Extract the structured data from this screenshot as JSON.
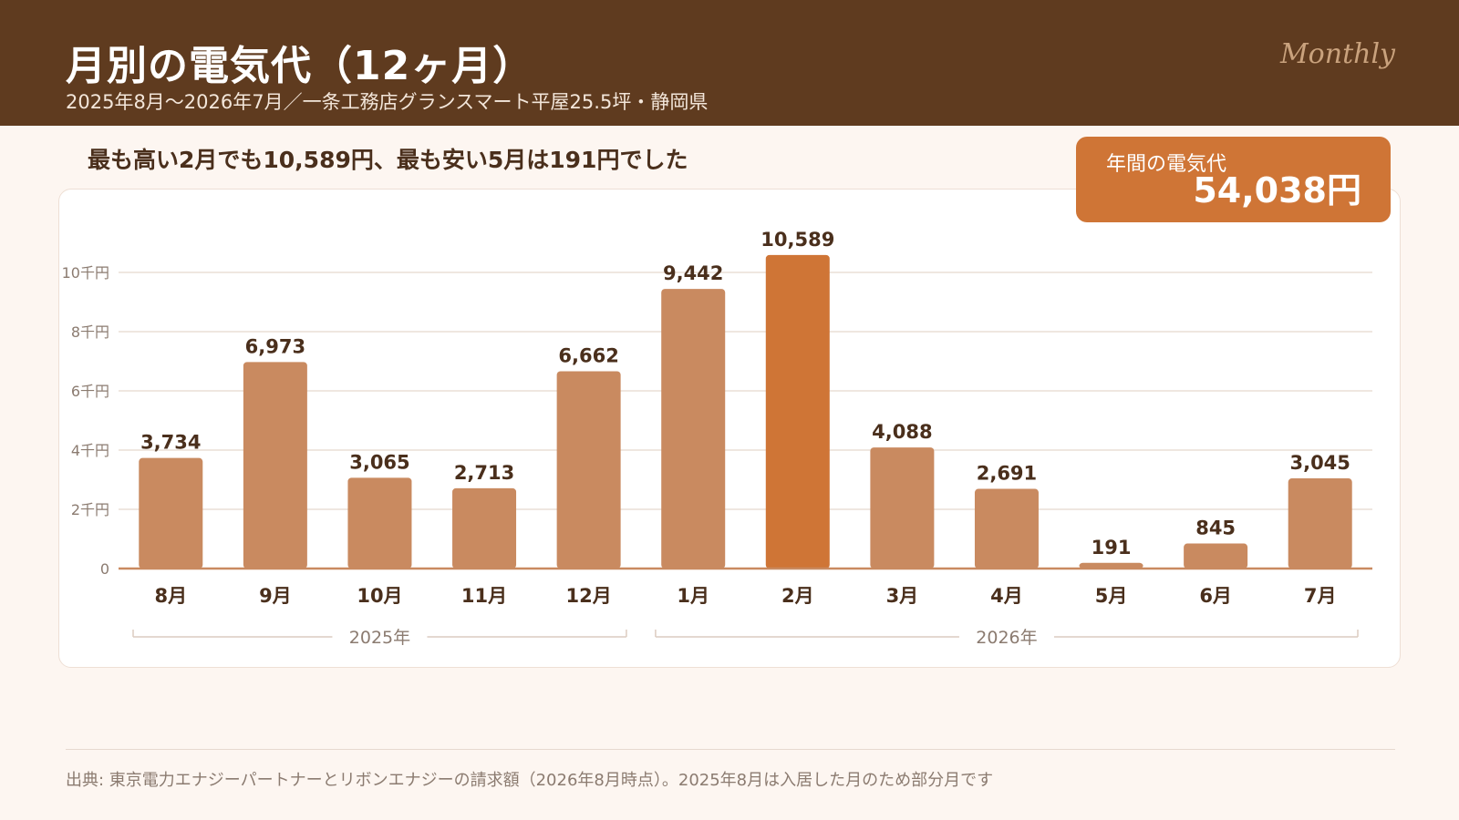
{
  "header": {
    "title": "月別の電気代（12ヶ月）",
    "subtitle": "2025年8月〜2026年7月／一条工務店グランスマート平屋25.5坪・静岡県",
    "tag": "Monthly"
  },
  "headline": "最も高い2月でも10,589円、最も安い5月は191円でした",
  "total": {
    "label": "年間の電気代",
    "value": "54,038円"
  },
  "source": "出典: 東京電力エナジーパートナーとリボンエナジーの請求額（2026年8月時点）。2025年8月は入居した月のため部分月です",
  "colors": {
    "header_bg": "#5f3b1f",
    "bar": "#c98a60",
    "bar_highlight": "#cf7536",
    "axis": "#c98a60",
    "grid": "#eadfd6",
    "total_bg": "#cf7536"
  },
  "chart_data": {
    "type": "bar",
    "categories": [
      "8月",
      "9月",
      "10月",
      "11月",
      "12月",
      "1月",
      "2月",
      "3月",
      "4月",
      "5月",
      "6月",
      "7月"
    ],
    "values": [
      3734,
      6973,
      3065,
      2713,
      6662,
      9442,
      10589,
      4088,
      2691,
      191,
      845,
      3045
    ],
    "value_labels": [
      "3,734",
      "6,973",
      "3,065",
      "2,713",
      "6,662",
      "9,442",
      "10,589",
      "4,088",
      "2,691",
      "191",
      "845",
      "3,045"
    ],
    "highlight_index": 6,
    "ylim": [
      0,
      10589
    ],
    "yticks": [
      0,
      2000,
      4000,
      6000,
      8000,
      10000
    ],
    "ytick_labels": [
      "0",
      "2千円",
      "4千円",
      "6千円",
      "8千円",
      "10千円"
    ],
    "year_groups": [
      {
        "label": "2025年",
        "start": 0,
        "end": 4
      },
      {
        "label": "2026年",
        "start": 5,
        "end": 11
      }
    ],
    "grid": true
  }
}
